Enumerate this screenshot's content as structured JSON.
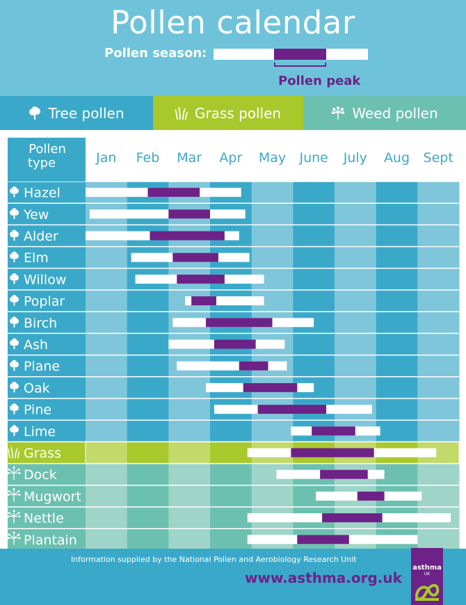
{
  "header": {
    "title": "Pollen calendar",
    "season_label": "Pollen season:",
    "peak_label": "Pollen peak"
  },
  "tabs": [
    {
      "label": "Tree pollen",
      "icon": "tree-icon"
    },
    {
      "label": "Grass pollen",
      "icon": "grass-icon"
    },
    {
      "label": "Weed pollen",
      "icon": "weed-icon"
    }
  ],
  "chart_data": {
    "type": "bar",
    "column_header": "Pollen type",
    "months": [
      "Jan",
      "Feb",
      "Mar",
      "Apr",
      "May",
      "June",
      "July",
      "Aug",
      "Sept"
    ],
    "series": [
      {
        "name": "Season",
        "color": "#ffffff"
      },
      {
        "name": "Peak",
        "color": "#6d2287"
      }
    ],
    "rows": [
      {
        "name": "Hazel",
        "category": "tree",
        "season": [
          0,
          3.75
        ],
        "peak": [
          1.5,
          2.75
        ]
      },
      {
        "name": "Yew",
        "category": "tree",
        "season": [
          0.1,
          3.85
        ],
        "peak": [
          2,
          3
        ]
      },
      {
        "name": "Alder",
        "category": "tree",
        "season": [
          0,
          3.7
        ],
        "peak": [
          1.55,
          3.35
        ]
      },
      {
        "name": "Elm",
        "category": "tree",
        "season": [
          1.1,
          3.95
        ],
        "peak": [
          2.1,
          3.2
        ]
      },
      {
        "name": "Willow",
        "category": "tree",
        "season": [
          1.2,
          4.3
        ],
        "peak": [
          2.2,
          3.35
        ]
      },
      {
        "name": "Poplar",
        "category": "tree",
        "season": [
          2.4,
          4.3
        ],
        "peak": [
          2.55,
          3.15
        ]
      },
      {
        "name": "Birch",
        "category": "tree",
        "season": [
          2.1,
          5.5
        ],
        "peak": [
          2.9,
          4.5
        ]
      },
      {
        "name": "Ash",
        "category": "tree",
        "season": [
          2,
          4.8
        ],
        "peak": [
          3.1,
          4.1
        ]
      },
      {
        "name": "Plane",
        "category": "tree",
        "season": [
          2.2,
          4.85
        ],
        "peak": [
          3.7,
          4.4
        ]
      },
      {
        "name": "Oak",
        "category": "tree",
        "season": [
          2.9,
          5.5
        ],
        "peak": [
          3.8,
          5.1
        ]
      },
      {
        "name": "Pine",
        "category": "tree",
        "season": [
          3.1,
          6.9
        ],
        "peak": [
          4.15,
          5.8
        ]
      },
      {
        "name": "Lime",
        "category": "tree",
        "season": [
          4.95,
          7.1
        ],
        "peak": [
          5.45,
          6.5
        ]
      },
      {
        "name": "Grass",
        "category": "grass",
        "season": [
          3.9,
          8.45
        ],
        "peak": [
          4.95,
          6.95
        ]
      },
      {
        "name": "Dock",
        "category": "weed",
        "season": [
          4.6,
          7.2
        ],
        "peak": [
          5.65,
          6.8
        ]
      },
      {
        "name": "Mugwort",
        "category": "weed",
        "season": [
          5.55,
          8.1
        ],
        "peak": [
          6.55,
          7.2
        ]
      },
      {
        "name": "Nettle",
        "category": "weed",
        "season": [
          3.9,
          8.8
        ],
        "peak": [
          5.7,
          7.15
        ]
      },
      {
        "name": "Plantain",
        "category": "weed",
        "season": [
          3.9,
          8
        ],
        " peak": [
          5.1,
          6.35
        ],
        "peak": [
          5.1,
          6.35
        ]
      }
    ]
  },
  "footer": {
    "info": "Information supplied by the National Pollen and Aerobiology Research Unit",
    "url": "www.asthma.org.uk",
    "logo_text": "asthma",
    "logo_sub": "UK"
  },
  "colors": {
    "header_bg": "#6ec3da",
    "tree": "#3aa9c9",
    "grass": "#a9c82c",
    "weed": "#6cc0b0",
    "peak": "#6d2287",
    "season": "#ffffff"
  }
}
